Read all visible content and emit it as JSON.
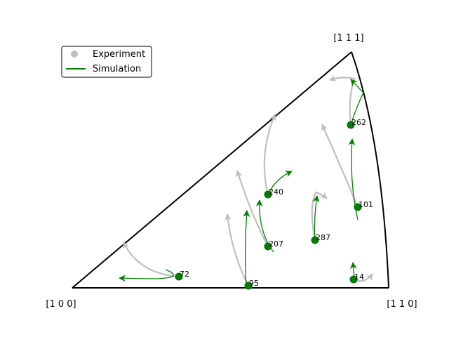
{
  "corners": {
    "top": "[1 1 1]",
    "left": "[1 0 0]",
    "right": "[1 1 0]"
  },
  "legend": {
    "experiment_label": "Experiment",
    "simulation_label": "Simulation"
  },
  "grains": [
    {
      "id": "262"
    },
    {
      "id": "240"
    },
    {
      "id": "101"
    },
    {
      "id": "287"
    },
    {
      "id": "207"
    },
    {
      "id": "72"
    },
    {
      "id": "95"
    },
    {
      "id": "14"
    }
  ],
  "colors": {
    "experiment": "#bfbfbf",
    "simulation": "#008000",
    "outline": "#000000"
  }
}
